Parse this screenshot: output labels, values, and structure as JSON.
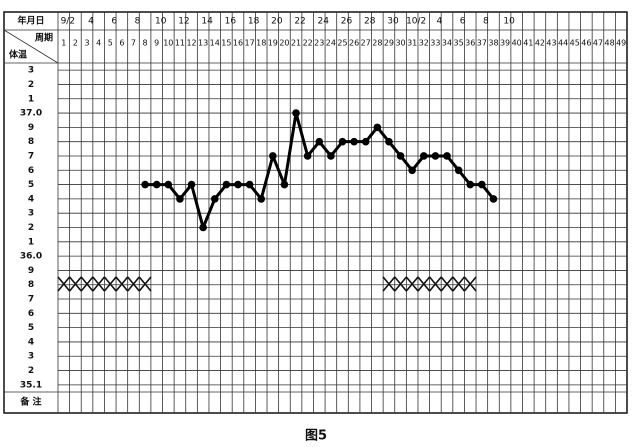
{
  "chart_data": {
    "type": "line",
    "corner_label": "年月日",
    "date_labels": [
      "9/2",
      "4",
      "6",
      "8",
      "10",
      "12",
      "14",
      "16",
      "18",
      "20",
      "22",
      "24",
      "26",
      "28",
      "30",
      "10/2",
      "4",
      "6",
      "8",
      "10"
    ],
    "x_label": "周期",
    "y_label": "体温",
    "notes_label": "备  注",
    "caption": "图5",
    "categories": [
      "1",
      "2",
      "3",
      "4",
      "5",
      "6",
      "7",
      "8",
      "9",
      "10",
      "11",
      "12",
      "13",
      "14",
      "15",
      "16",
      "17",
      "18",
      "19",
      "20",
      "21",
      "22",
      "23",
      "24",
      "25",
      "26",
      "27",
      "28",
      "29",
      "30",
      "31",
      "32",
      "33",
      "34",
      "35",
      "36",
      "37",
      "38",
      "39",
      "40",
      "41",
      "42",
      "43",
      "44",
      "45",
      "46",
      "47",
      "48",
      "49"
    ],
    "values": [
      null,
      null,
      null,
      null,
      null,
      null,
      null,
      36.5,
      36.5,
      36.5,
      36.4,
      36.5,
      36.2,
      36.4,
      36.5,
      36.5,
      36.5,
      36.4,
      36.7,
      36.5,
      37.0,
      36.7,
      36.8,
      36.7,
      36.8,
      36.8,
      36.8,
      36.9,
      36.8,
      36.7,
      36.6,
      36.7,
      36.7,
      36.7,
      36.6,
      36.5,
      36.5,
      36.4,
      null,
      null,
      null,
      null,
      null,
      null,
      null,
      null,
      null,
      null,
      null
    ],
    "color": "#000000",
    "ylim": [
      35.05,
      37.35
    ],
    "yticks": [
      {
        "value": 37.3,
        "label": "3"
      },
      {
        "value": 37.2,
        "label": "2"
      },
      {
        "value": 37.1,
        "label": "1"
      },
      {
        "value": 37.0,
        "label": "37.0"
      },
      {
        "value": 36.9,
        "label": "9"
      },
      {
        "value": 36.8,
        "label": "8"
      },
      {
        "value": 36.7,
        "label": "7"
      },
      {
        "value": 36.6,
        "label": "6"
      },
      {
        "value": 36.5,
        "label": "5"
      },
      {
        "value": 36.4,
        "label": "4"
      },
      {
        "value": 36.3,
        "label": "3"
      },
      {
        "value": 36.2,
        "label": "2"
      },
      {
        "value": 36.1,
        "label": "1"
      },
      {
        "value": 36.0,
        "label": "36.0"
      },
      {
        "value": 35.9,
        "label": "9"
      },
      {
        "value": 35.8,
        "label": "8"
      },
      {
        "value": 35.7,
        "label": "7"
      },
      {
        "value": 35.6,
        "label": "6"
      },
      {
        "value": 35.5,
        "label": "5"
      },
      {
        "value": 35.4,
        "label": "4"
      },
      {
        "value": 35.3,
        "label": "3"
      },
      {
        "value": 35.2,
        "label": "2"
      },
      35.1
    ],
    "grid": true
  }
}
